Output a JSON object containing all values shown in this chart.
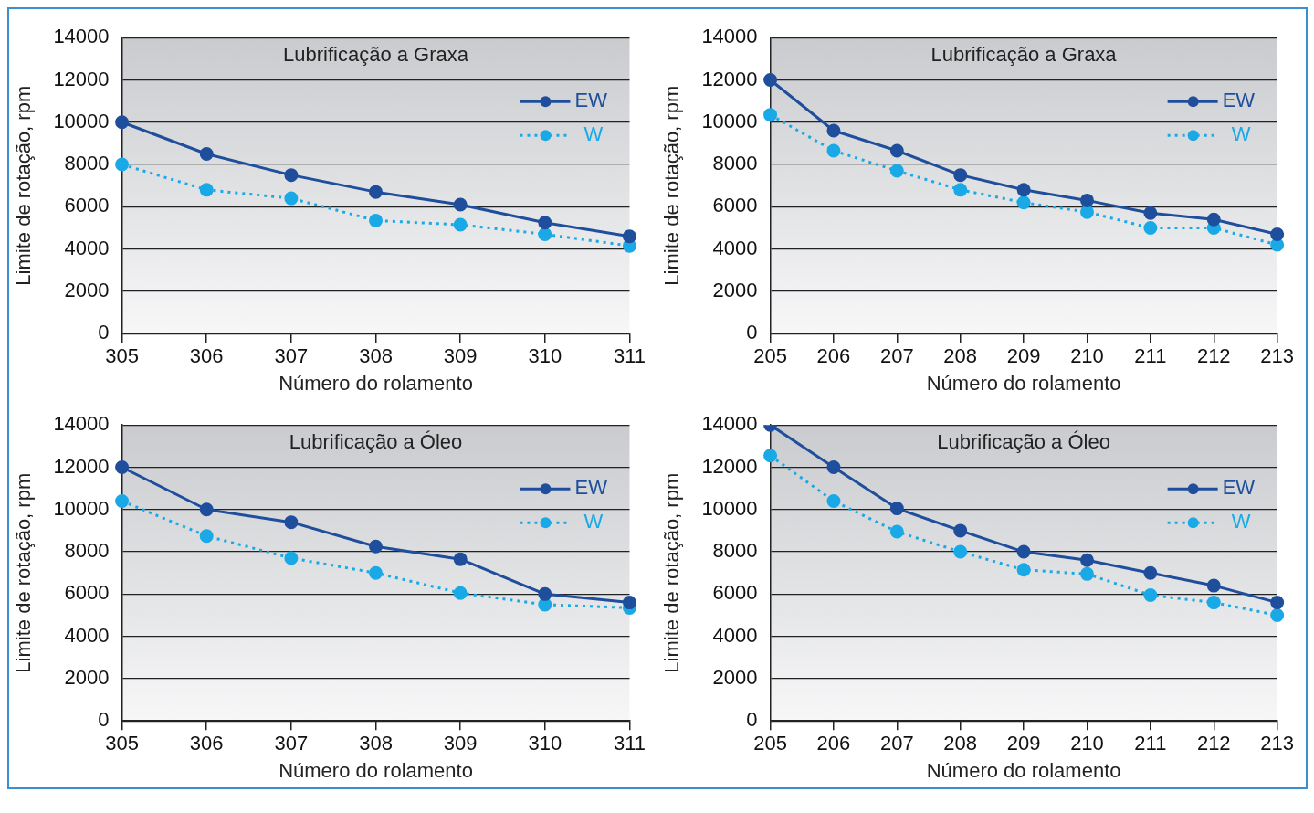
{
  "chart_data": [
    {
      "type": "line",
      "title": "Lubrificação a Graxa",
      "xlabel": "Número do rolamento",
      "ylabel": "Limite de rotação, rpm",
      "categories": [
        "305",
        "306",
        "307",
        "308",
        "309",
        "310",
        "311"
      ],
      "series": [
        {
          "name": "EW",
          "color": "#1f4e9c",
          "values": [
            10000,
            8500,
            7500,
            6700,
            6100,
            5250,
            4600
          ],
          "line_style": "solid"
        },
        {
          "name": "W",
          "color": "#19a9e6",
          "values": [
            8000,
            6800,
            6400,
            5350,
            5150,
            4700,
            4150
          ],
          "line_style": "dotted"
        }
      ],
      "ylim": [
        0,
        14000
      ],
      "yticks": [
        0,
        2000,
        4000,
        6000,
        8000,
        10000,
        12000,
        14000
      ],
      "grid": "y",
      "legend": "top right",
      "marker": "circle"
    },
    {
      "type": "line",
      "title": "Lubrificação a Graxa",
      "xlabel": "Número do rolamento",
      "ylabel": "Limite de rotação, rpm",
      "categories": [
        "205",
        "206",
        "207",
        "208",
        "209",
        "210",
        "211",
        "212",
        "213"
      ],
      "series": [
        {
          "name": "EW",
          "color": "#1f4e9c",
          "values": [
            12000,
            9600,
            8650,
            7500,
            6800,
            6300,
            5700,
            5400,
            4700
          ],
          "line_style": "solid"
        },
        {
          "name": "W",
          "color": "#19a9e6",
          "values": [
            10350,
            8650,
            7700,
            6800,
            6200,
            5750,
            5000,
            5000,
            4200
          ],
          "line_style": "dotted"
        }
      ],
      "ylim": [
        0,
        14000
      ],
      "yticks": [
        0,
        2000,
        4000,
        6000,
        8000,
        10000,
        12000,
        14000
      ],
      "grid": "y",
      "legend": "top right",
      "marker": "circle"
    },
    {
      "type": "line",
      "title": "Lubrificação a Óleo",
      "xlabel": "Número do rolamento",
      "ylabel": "Limite de rotação, rpm",
      "categories": [
        "305",
        "306",
        "307",
        "308",
        "309",
        "310",
        "311"
      ],
      "series": [
        {
          "name": "EW",
          "color": "#1f4e9c",
          "values": [
            12000,
            10000,
            9400,
            8250,
            7650,
            6000,
            5600
          ],
          "line_style": "solid"
        },
        {
          "name": "W",
          "color": "#19a9e6",
          "values": [
            10400,
            8750,
            7700,
            7000,
            6050,
            5500,
            5350
          ],
          "line_style": "dotted"
        }
      ],
      "ylim": [
        0,
        14000
      ],
      "yticks": [
        0,
        2000,
        4000,
        6000,
        8000,
        10000,
        12000,
        14000
      ],
      "grid": "y",
      "legend": "top right",
      "marker": "circle"
    },
    {
      "type": "line",
      "title": "Lubrificação a Óleo",
      "xlabel": "Número do rolamento",
      "ylabel": "Limite de rotação, rpm",
      "categories": [
        "205",
        "206",
        "207",
        "208",
        "209",
        "210",
        "211",
        "212",
        "213"
      ],
      "series": [
        {
          "name": "EW",
          "color": "#1f4e9c",
          "values": [
            14000,
            12000,
            10050,
            9000,
            8000,
            7600,
            7000,
            6400,
            5600
          ],
          "line_style": "solid"
        },
        {
          "name": "W",
          "color": "#19a9e6",
          "values": [
            12550,
            10400,
            8950,
            8000,
            7150,
            6950,
            5950,
            5600,
            5000
          ],
          "line_style": "dotted"
        }
      ],
      "ylim": [
        0,
        14000
      ],
      "yticks": [
        0,
        2000,
        4000,
        6000,
        8000,
        10000,
        12000,
        14000
      ],
      "grid": "y",
      "legend": "top right",
      "marker": "circle"
    }
  ]
}
